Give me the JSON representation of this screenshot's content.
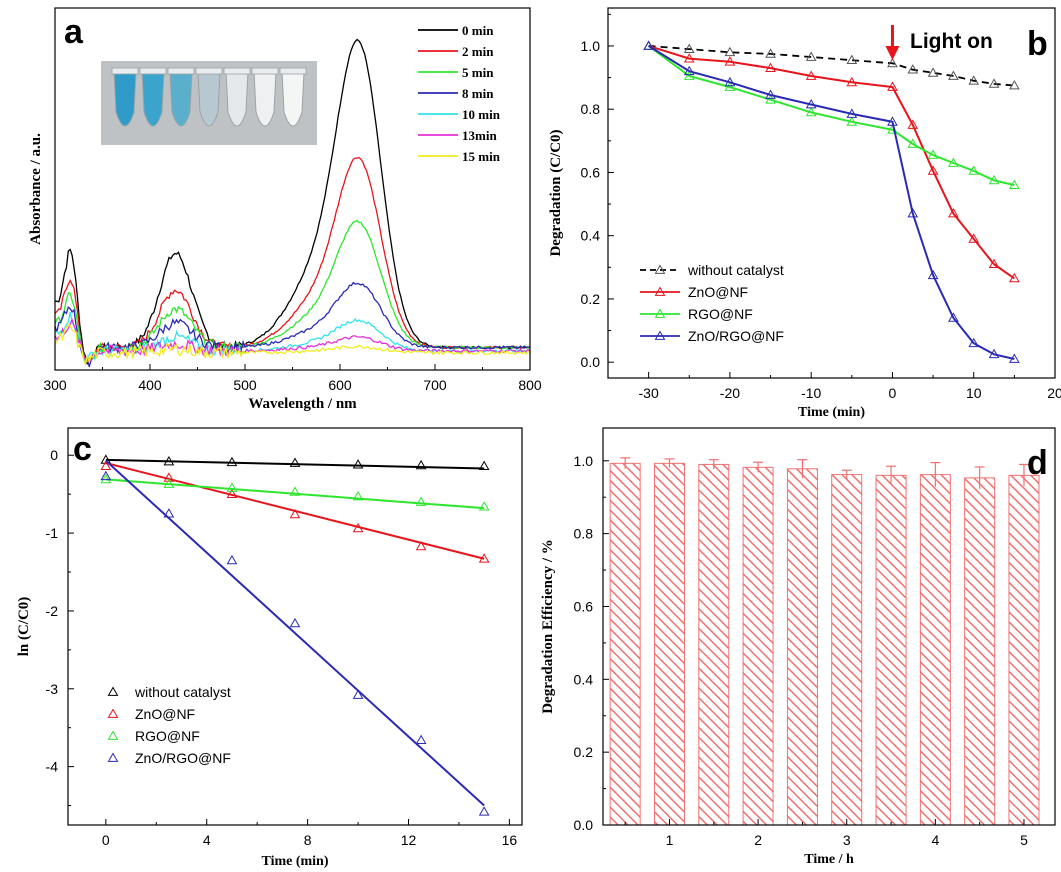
{
  "chart_data": [
    {
      "panel": "a",
      "type": "line",
      "xlabel": "Wavelength / nm",
      "ylabel": "Absorbance / a.u.",
      "xlim": [
        300,
        800
      ],
      "x_ticks": [
        "300",
        "400",
        "500",
        "600",
        "700",
        "800"
      ],
      "legend_position": "top-right",
      "inset": "photo of seven sample vials, blue fading to clear",
      "series": [
        {
          "name": "0 min",
          "color": "#000000",
          "baseline": 0.065,
          "uv": 0.28,
          "mid": 0.27,
          "peak": 1.0
        },
        {
          "name": "2 min",
          "color": "#e8141c",
          "baseline": 0.065,
          "uv": 0.2,
          "mid": 0.165,
          "peak": 0.62
        },
        {
          "name": "5 min",
          "color": "#2ee62e",
          "baseline": 0.065,
          "uv": 0.15,
          "mid": 0.11,
          "peak": 0.41
        },
        {
          "name": "8 min",
          "color": "#2a2ab5",
          "baseline": 0.065,
          "uv": 0.12,
          "mid": 0.07,
          "peak": 0.21
        },
        {
          "name": "10 min",
          "color": "#33e3e8",
          "baseline": 0.055,
          "uv": 0.1,
          "mid": 0.04,
          "peak": 0.1
        },
        {
          "name": "13min",
          "color": "#e630d8",
          "baseline": 0.055,
          "uv": 0.08,
          "mid": 0.02,
          "peak": 0.045
        },
        {
          "name": "15 min",
          "color": "#f2ec1e",
          "baseline": 0.05,
          "uv": 0.07,
          "mid": 0.01,
          "peak": 0.02
        }
      ]
    },
    {
      "panel": "b",
      "type": "line",
      "xlabel": "Time (min)",
      "ylabel": "Degradation (C/C0)",
      "xlim": [
        -35,
        20
      ],
      "ylim": [
        -0.05,
        1.12
      ],
      "x_ticks": [
        -30,
        -20,
        -10,
        0,
        10,
        20
      ],
      "y_ticks": [
        0.0,
        0.2,
        0.4,
        0.6,
        0.8,
        1.0
      ],
      "annotation": "Light on",
      "annotation_x": 0,
      "legend_position": "bottom-left",
      "series": [
        {
          "name": "without catalyst",
          "color": "#000000",
          "dashed": true,
          "x": [
            -30,
            -25,
            -20,
            -15,
            -10,
            -5,
            0,
            2.5,
            5,
            7.5,
            10,
            12.5,
            15
          ],
          "y": [
            1.0,
            0.99,
            0.98,
            0.975,
            0.965,
            0.955,
            0.945,
            0.925,
            0.915,
            0.905,
            0.89,
            0.88,
            0.875
          ]
        },
        {
          "name": "ZnO@NF",
          "color": "#e8141c",
          "x": [
            -30,
            -25,
            -20,
            -15,
            -10,
            -5,
            0,
            2.5,
            5,
            7.5,
            10,
            12.5,
            15
          ],
          "y": [
            1.0,
            0.96,
            0.95,
            0.93,
            0.905,
            0.885,
            0.87,
            0.75,
            0.605,
            0.47,
            0.39,
            0.31,
            0.265
          ]
        },
        {
          "name": "RGO@NF",
          "color": "#2ee62e",
          "x": [
            -30,
            -25,
            -20,
            -15,
            -10,
            -5,
            0,
            2.5,
            5,
            7.5,
            10,
            12.5,
            15
          ],
          "y": [
            1.0,
            0.905,
            0.87,
            0.83,
            0.79,
            0.76,
            0.735,
            0.69,
            0.655,
            0.63,
            0.605,
            0.575,
            0.56
          ]
        },
        {
          "name": "ZnO/RGO@NF",
          "color": "#2a2ab5",
          "x": [
            -30,
            -25,
            -20,
            -15,
            -10,
            -5,
            0,
            2.5,
            5,
            7.5,
            10,
            12.5,
            15
          ],
          "y": [
            1.0,
            0.92,
            0.885,
            0.845,
            0.815,
            0.785,
            0.76,
            0.47,
            0.275,
            0.14,
            0.06,
            0.025,
            0.01
          ]
        }
      ]
    },
    {
      "panel": "c",
      "type": "scatter",
      "xlabel": "Time (min)",
      "ylabel": "ln (C/C0)",
      "xlim": [
        -1.5,
        16.5
      ],
      "ylim": [
        -4.75,
        0.35
      ],
      "x_ticks": [
        0,
        4,
        8,
        12,
        16
      ],
      "y_ticks": [
        0,
        -1,
        -2,
        -3,
        -4
      ],
      "legend_position": "bottom-left",
      "series": [
        {
          "name": "without catalyst",
          "color": "#000000",
          "x": [
            0,
            2.5,
            5,
            7.5,
            10,
            12.5,
            15
          ],
          "y": [
            -0.06,
            -0.08,
            -0.09,
            -0.1,
            -0.12,
            -0.13,
            -0.14
          ],
          "fit": [
            [
              0,
              -0.06
            ],
            [
              15,
              -0.17
            ]
          ]
        },
        {
          "name": "ZnO@NF",
          "color": "#e8141c",
          "x": [
            0,
            2.5,
            5,
            7.5,
            10,
            12.5,
            15
          ],
          "y": [
            -0.14,
            -0.29,
            -0.5,
            -0.76,
            -0.94,
            -1.17,
            -1.33
          ],
          "fit": [
            [
              0,
              -0.1
            ],
            [
              15,
              -1.33
            ]
          ]
        },
        {
          "name": "RGO@NF",
          "color": "#2ee62e",
          "x": [
            0,
            2.5,
            5,
            7.5,
            10,
            12.5,
            15
          ],
          "y": [
            -0.31,
            -0.37,
            -0.42,
            -0.47,
            -0.53,
            -0.6,
            -0.66
          ],
          "fit": [
            [
              0,
              -0.31
            ],
            [
              15,
              -0.68
            ]
          ]
        },
        {
          "name": "ZnO/RGO@NF",
          "color": "#2a2ab5",
          "x": [
            0,
            2.5,
            5,
            7.5,
            10,
            12.5,
            15
          ],
          "y": [
            -0.27,
            -0.75,
            -1.35,
            -2.16,
            -3.08,
            -3.66,
            -4.58
          ],
          "fit": [
            [
              0,
              -0.07
            ],
            [
              15,
              -4.5
            ]
          ]
        }
      ]
    },
    {
      "panel": "d",
      "type": "bar",
      "xlabel": "Time / h",
      "ylabel": "Degradation Efficiency / %",
      "xlim": [
        0.25,
        5.35
      ],
      "ylim": [
        0,
        1.09
      ],
      "x_ticks": [
        1,
        2,
        3,
        4,
        5
      ],
      "y_ticks": [
        0.0,
        0.2,
        0.4,
        0.6,
        0.8,
        1.0
      ],
      "bar_color": "#f07070",
      "bar_pattern": "diagonal hatch",
      "x": [
        0.5,
        1.0,
        1.5,
        2.0,
        2.5,
        3.0,
        3.5,
        4.0,
        4.5,
        5.0
      ],
      "values": [
        0.993,
        0.993,
        0.99,
        0.982,
        0.978,
        0.962,
        0.96,
        0.962,
        0.953,
        0.96
      ],
      "errors": [
        0.015,
        0.012,
        0.013,
        0.014,
        0.025,
        0.012,
        0.025,
        0.033,
        0.03,
        0.03
      ]
    }
  ],
  "panel_labels": [
    "a",
    "b",
    "c",
    "d"
  ]
}
